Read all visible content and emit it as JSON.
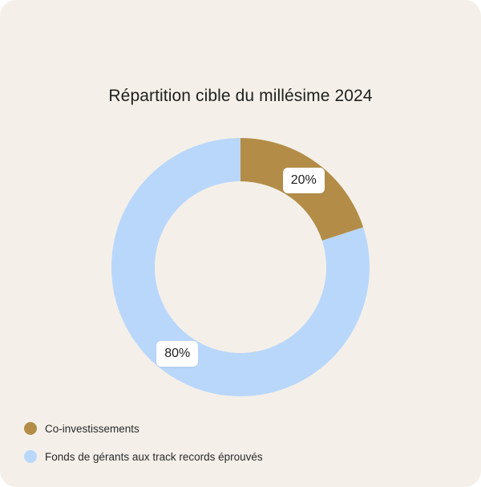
{
  "chart_data": {
    "type": "pie",
    "title": "Répartition cible du millésime 2024",
    "categories": [
      "Co-investissements",
      "Fonds de gérants aux track records éprouvés"
    ],
    "values": [
      20,
      80
    ],
    "value_labels": [
      "20%",
      "80%"
    ],
    "colors": [
      "#b38d48",
      "#b9d7fb"
    ],
    "donut": true,
    "legend": "bottom-left"
  },
  "colors": {
    "background": "#f4f0e9",
    "text": "#1f1f1f"
  }
}
